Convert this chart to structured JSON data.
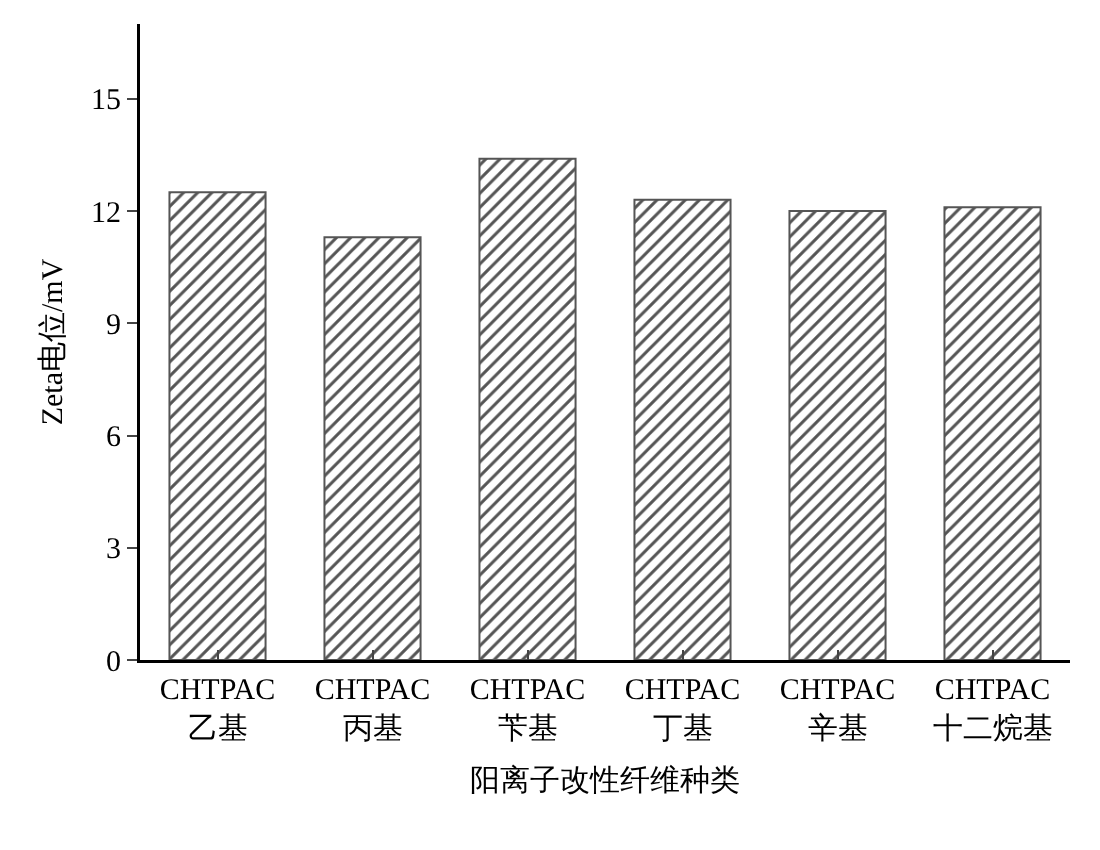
{
  "chart_data": {
    "type": "bar",
    "xlabel": "阳离子改性纤维种类",
    "ylabel": "Zeta电位/mV",
    "categories": [
      "CHTPAC\n乙基",
      "CHTPAC\n丙基",
      "CHTPAC\n苄基",
      "CHTPAC\n丁基",
      "CHTPAC\n辛基",
      "CHTPAC\n十二烷基"
    ],
    "values": [
      12.5,
      11.3,
      13.4,
      12.3,
      12.0,
      12.1
    ],
    "color": "#555555",
    "ylim": [
      0,
      17
    ],
    "yticks": [
      0,
      3,
      6,
      9,
      12,
      15
    ],
    "grid": false,
    "legend": false
  }
}
